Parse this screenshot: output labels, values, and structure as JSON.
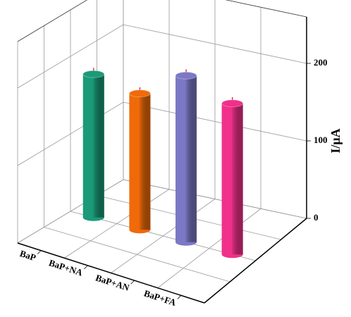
{
  "chart_data": {
    "type": "bar3d",
    "categories": [
      "BaP",
      "BaP+NA",
      "BaP+AN",
      "BaP+FA"
    ],
    "values": [
      185,
      176,
      215,
      195
    ],
    "errors": [
      8,
      8,
      8,
      8
    ],
    "colors": [
      "#1a9a78",
      "#f06a0a",
      "#7b78c6",
      "#f0308a"
    ],
    "error_color": "#e8303a",
    "y_label": "I/μA",
    "ylim": [
      0,
      260
    ],
    "yticks": [
      0,
      100,
      200
    ],
    "grid": true
  }
}
